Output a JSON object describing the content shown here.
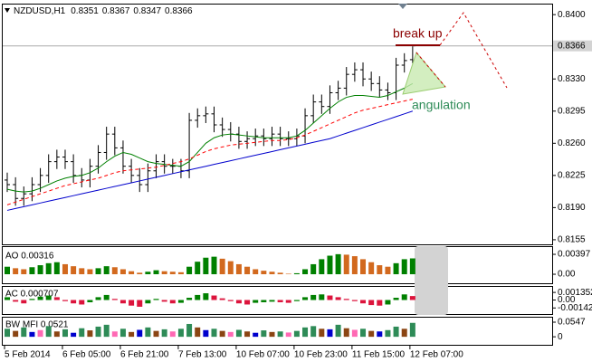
{
  "chart_data": [
    {
      "type": "ohlc",
      "title": "NZDUSD,H1",
      "header_values": [
        0.8351,
        0.8367,
        0.8347,
        0.8366
      ],
      "color": "#000000",
      "categories": [
        "5 Feb 2014",
        null,
        null,
        null,
        null,
        null,
        null,
        "6 Feb 05:00",
        null,
        null,
        null,
        null,
        null,
        null,
        "6 Feb 21:00",
        null,
        null,
        null,
        null,
        null,
        null,
        "7 Feb 13:00",
        null,
        null,
        null,
        null,
        null,
        null,
        "10 Feb 07:00",
        null,
        null,
        null,
        null,
        null,
        null,
        "10 Feb 23:00",
        null,
        null,
        null,
        null,
        null,
        null,
        "11 Feb 15:00",
        null,
        null,
        null,
        null,
        null,
        null,
        "12 Feb 07:00"
      ],
      "open": [
        0.822,
        0.8215,
        0.82,
        0.8205,
        0.8215,
        0.8225,
        0.824,
        0.8245,
        0.824,
        0.8225,
        0.822,
        0.8235,
        0.825,
        0.827,
        0.8255,
        0.8235,
        0.8225,
        0.8215,
        0.823,
        0.824,
        0.8235,
        0.8235,
        0.823,
        0.8285,
        0.829,
        0.8292,
        0.828,
        0.8275,
        0.827,
        0.8262,
        0.8265,
        0.8268,
        0.8265,
        0.827,
        0.8265,
        0.8265,
        0.8268,
        0.829,
        0.8305,
        0.83,
        0.8315,
        0.832,
        0.8335,
        0.834,
        0.833,
        0.8325,
        0.8318,
        0.8315,
        0.8345,
        0.8351
      ],
      "high": [
        0.8228,
        0.8223,
        0.8213,
        0.8223,
        0.8233,
        0.8248,
        0.8253,
        0.8253,
        0.8248,
        0.8233,
        0.8243,
        0.8258,
        0.8278,
        0.8278,
        0.8263,
        0.8243,
        0.8233,
        0.8238,
        0.8248,
        0.8248,
        0.8243,
        0.8243,
        0.8293,
        0.8298,
        0.83,
        0.83,
        0.8288,
        0.8283,
        0.8278,
        0.8273,
        0.8276,
        0.8276,
        0.8278,
        0.8278,
        0.8273,
        0.8276,
        0.8298,
        0.8313,
        0.8313,
        0.8323,
        0.8328,
        0.8343,
        0.8348,
        0.8348,
        0.8338,
        0.8333,
        0.8326,
        0.8353,
        0.8358,
        0.8367
      ],
      "low": [
        0.8207,
        0.8192,
        0.8192,
        0.8197,
        0.8207,
        0.8217,
        0.8232,
        0.8232,
        0.8217,
        0.8212,
        0.8212,
        0.8227,
        0.8242,
        0.8247,
        0.8227,
        0.8217,
        0.8207,
        0.8207,
        0.8222,
        0.8227,
        0.8227,
        0.8222,
        0.8222,
        0.8277,
        0.8282,
        0.8272,
        0.8267,
        0.8262,
        0.8254,
        0.8254,
        0.8257,
        0.8257,
        0.8257,
        0.8257,
        0.8257,
        0.8257,
        0.826,
        0.8282,
        0.8292,
        0.8292,
        0.8307,
        0.8312,
        0.8327,
        0.8322,
        0.8317,
        0.831,
        0.8307,
        0.8307,
        0.8337,
        0.8347
      ],
      "close": [
        0.8215,
        0.82,
        0.8205,
        0.8215,
        0.8225,
        0.824,
        0.8245,
        0.824,
        0.8225,
        0.822,
        0.8235,
        0.825,
        0.827,
        0.8255,
        0.8235,
        0.8225,
        0.8215,
        0.823,
        0.824,
        0.8235,
        0.8235,
        0.823,
        0.8285,
        0.829,
        0.8292,
        0.828,
        0.8275,
        0.827,
        0.8262,
        0.8265,
        0.8268,
        0.8265,
        0.827,
        0.8265,
        0.8265,
        0.8268,
        0.829,
        0.8305,
        0.83,
        0.8315,
        0.832,
        0.8335,
        0.834,
        0.833,
        0.8325,
        0.8318,
        0.8315,
        0.8345,
        0.835,
        0.8366
      ],
      "series": [
        {
          "color": "#008000",
          "dash": false,
          "values": [
            0.821,
            0.8208,
            0.8207,
            0.8208,
            0.8211,
            0.8215,
            0.8219,
            0.8222,
            0.8224,
            0.8225,
            0.8228,
            0.8233,
            0.824,
            0.8246,
            0.825,
            0.8248,
            0.8244,
            0.824,
            0.8238,
            0.8237,
            0.8236,
            0.8235,
            0.824,
            0.825,
            0.826,
            0.8266,
            0.8269,
            0.827,
            0.8269,
            0.8268,
            0.8267,
            0.8266,
            0.8266,
            0.8266,
            0.8266,
            0.8268,
            0.8274,
            0.8282,
            0.829,
            0.8298,
            0.8305,
            0.831,
            0.8312,
            0.8312,
            0.8311,
            0.831,
            0.8312,
            0.8316,
            0.832,
            0.8325
          ]
        },
        {
          "color": "#ff0000",
          "dash": true,
          "values": [
            0.8193,
            0.8196,
            0.8199,
            0.8202,
            0.8205,
            0.8208,
            0.8211,
            0.8214,
            0.8216,
            0.8218,
            0.822,
            0.8222,
            0.8225,
            0.8228,
            0.823,
            0.8231,
            0.8232,
            0.8233,
            0.8234,
            0.8236,
            0.8238,
            0.824,
            0.8243,
            0.8247,
            0.8251,
            0.8254,
            0.8256,
            0.8258,
            0.8259,
            0.826,
            0.8261,
            0.8262,
            0.8263,
            0.8263,
            0.8264,
            0.8266,
            0.8269,
            0.8273,
            0.8277,
            0.8281,
            0.8285,
            0.8289,
            0.8293,
            0.8296,
            0.8298,
            0.83,
            0.8302,
            0.8304,
            0.8306,
            0.8308
          ]
        },
        {
          "color": "#0000cd",
          "dash": false,
          "values": [
            0.8187,
            0.8189,
            0.8191,
            0.8193,
            0.8195,
            0.8197,
            0.8199,
            0.8201,
            0.8203,
            0.8205,
            0.8207,
            0.8209,
            0.8211,
            0.8213,
            0.8215,
            0.8217,
            0.8219,
            0.8221,
            0.8223,
            0.8225,
            0.8227,
            0.8229,
            0.8231,
            0.8233,
            0.8235,
            0.8237,
            0.8239,
            0.8241,
            0.8243,
            0.8245,
            0.8247,
            0.8249,
            0.8251,
            0.8253,
            0.8255,
            0.8257,
            0.8259,
            0.8261,
            0.8263,
            0.8265,
            0.8268,
            0.8271,
            0.8274,
            0.8277,
            0.828,
            0.8283,
            0.8286,
            0.8289,
            0.8292,
            0.8295
          ]
        }
      ],
      "ylim": [
        0.815,
        0.8411
      ],
      "yticks": [
        {
          "value": 0.84,
          "label": "0.8400"
        },
        {
          "value": 0.833,
          "label": "0.8330"
        },
        0.8295,
        {
          "value": 0.826,
          "label": "0.8260"
        },
        0.8225,
        {
          "value": 0.819,
          "label": "0.8190"
        },
        0.8155
      ],
      "current_price": 0.8366,
      "annotations": {
        "break_up": "break up",
        "angulation": "angulation"
      }
    },
    {
      "type": "bar",
      "title": "AO 0.00316",
      "up_color": "#008000",
      "down_color": "#d2691e",
      "values": [
        0.0015,
        0.0012,
        0.001,
        0.0014,
        0.0018,
        0.0022,
        0.0024,
        0.002,
        0.0016,
        0.0012,
        0.001,
        0.0012,
        0.0016,
        0.0014,
        0.001,
        0.0006,
        0.0003,
        0.0005,
        0.0008,
        0.0006,
        0.0005,
        0.0004,
        0.0015,
        0.0025,
        0.0033,
        0.0035,
        0.0031,
        0.0026,
        0.002,
        0.0015,
        0.001,
        0.0007,
        0.0005,
        0.0003,
        0.0001,
        0.0002,
        0.001,
        0.002,
        0.003,
        0.0037,
        0.004,
        0.0039,
        0.0036,
        0.003,
        0.0024,
        0.0018,
        0.0015,
        0.0022,
        0.003,
        0.00316
      ],
      "ylim": [
        -0.0018,
        0.0056
      ],
      "yticks": [
        0.00397,
        {
          "value": 0,
          "label": "0.00"
        }
      ]
    },
    {
      "type": "bar",
      "title": "AC 0.000707",
      "up_color": "#008000",
      "down_color": "#dc143c",
      "values": [
        0.0005,
        -0.0003,
        -0.0006,
        0.0002,
        0.0006,
        0.0008,
        0.0005,
        -0.0002,
        -0.0006,
        -0.0008,
        -0.0004,
        0.0005,
        0.0009,
        0.0002,
        -0.0006,
        -0.001,
        -0.0012,
        -0.0006,
        0.0002,
        -0.0003,
        -0.0006,
        -0.0005,
        0.0004,
        0.0009,
        0.0012,
        0.0008,
        0.0003,
        -0.0002,
        -0.0006,
        -0.0008,
        -0.0005,
        -0.0004,
        -0.0003,
        -0.0004,
        -0.0005,
        -0.0002,
        0.0005,
        0.0009,
        0.001,
        0.0008,
        0.0005,
        0.0002,
        -0.0002,
        -0.0006,
        -0.0009,
        -0.001,
        -0.0008,
        0.0004,
        0.001,
        0.000707
      ],
      "ylim": [
        -0.0025,
        0.0025
      ],
      "yticks": [
        0.001352,
        {
          "value": 0,
          "label": "0.00"
        },
        -0.00142
      ]
    },
    {
      "type": "bar",
      "title": "BW MFI 0.0521",
      "values": [
        0.03,
        0.022,
        0.035,
        0.018,
        0.025,
        0.04,
        0.02,
        0.028,
        0.015,
        0.032,
        0.024,
        0.038,
        0.045,
        0.02,
        0.03,
        0.018,
        0.026,
        0.035,
        0.022,
        0.028,
        0.02,
        0.03,
        0.048,
        0.035,
        0.025,
        0.03,
        0.022,
        0.018,
        0.026,
        0.02,
        0.015,
        0.024,
        0.018,
        0.02,
        0.016,
        0.022,
        0.035,
        0.04,
        0.03,
        0.028,
        0.045,
        0.032,
        0.026,
        0.03,
        0.022,
        0.02,
        0.025,
        0.038,
        0.03,
        0.0521
      ],
      "colors": [
        "#2e8b57",
        "#8b4513",
        "#2e8b57",
        "#0000cd",
        "#ff69b4",
        "#2e8b57",
        "#8b4513",
        "#2e8b57",
        "#0000cd",
        "#2e8b57",
        "#8b4513",
        "#2e8b57",
        "#2e8b57",
        "#ff69b4",
        "#2e8b57",
        "#8b4513",
        "#0000cd",
        "#2e8b57",
        "#8b4513",
        "#2e8b57",
        "#ff69b4",
        "#2e8b57",
        "#2e8b57",
        "#8b4513",
        "#0000cd",
        "#2e8b57",
        "#8b4513",
        "#ff69b4",
        "#2e8b57",
        "#8b4513",
        "#0000cd",
        "#2e8b57",
        "#8b4513",
        "#2e8b57",
        "#ff69b4",
        "#2e8b57",
        "#2e8b57",
        "#2e8b57",
        "#8b4513",
        "#0000cd",
        "#2e8b57",
        "#8b4513",
        "#ff69b4",
        "#2e8b57",
        "#8b4513",
        "#0000cd",
        "#2e8b57",
        "#2e8b57",
        "#8b4513",
        "#2e8b57"
      ],
      "ylim": [
        -0.03,
        0.075
      ],
      "yticks": [
        0.0547,
        0
      ]
    }
  ]
}
